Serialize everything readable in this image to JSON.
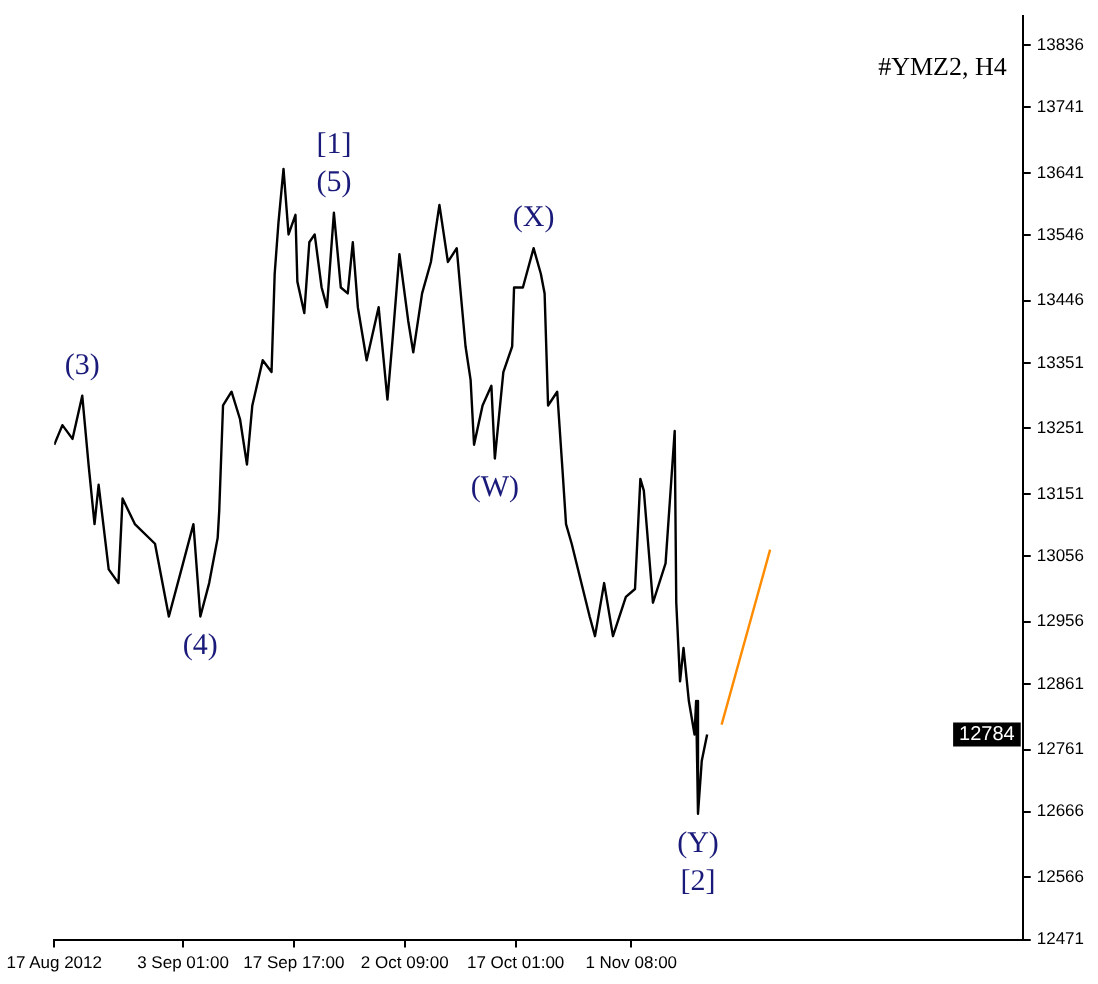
{
  "chart_data": {
    "type": "line",
    "title": "#YMZ2, H4",
    "xlim": [
      "2012-08-17T00:00",
      "2012-12-23T03:00"
    ],
    "xticks": [
      {
        "value": "2012-08-17T00:00",
        "label": "17 Aug 2012"
      },
      {
        "value": "2012-09-03T01:00",
        "label": "3 Sep 01:00"
      },
      {
        "value": "2012-09-17T17:00",
        "label": "17 Sep 17:00"
      },
      {
        "value": "2012-10-02T09:00",
        "label": "2 Oct 09:00"
      },
      {
        "value": "2012-10-17T01:00",
        "label": "17 Oct 01:00"
      },
      {
        "value": "2012-11-01T08:00",
        "label": "1 Nov 08:00"
      }
    ],
    "ylim": [
      12471,
      13880
    ],
    "yticks": [
      12471,
      12566,
      12666,
      12761,
      12861,
      12956,
      13056,
      13151,
      13251,
      13351,
      13446,
      13546,
      13641,
      13741,
      13836
    ],
    "grid": false,
    "legend": false,
    "marker": "none",
    "line_style": "solid",
    "series": [
      {
        "type": "line",
        "color": "#000000",
        "x": [
          "2012-08-17T00:00",
          "2012-08-18T02:00",
          "2012-08-19T10:00",
          "2012-08-20T17:00",
          "2012-08-21T13:00",
          "2012-08-22T08:00",
          "2012-08-22T21:00",
          "2012-08-24T05:00",
          "2012-08-25T12:00",
          "2012-08-26T01:00",
          "2012-08-27T16:00",
          "2012-08-30T08:00",
          "2012-09-01T04:00",
          "2012-09-03T01:00",
          "2012-09-04T10:00",
          "2012-09-05T08:00",
          "2012-09-06T12:00",
          "2012-09-07T15:00",
          "2012-09-07T20:00",
          "2012-09-08T08:00",
          "2012-09-09T11:00",
          "2012-09-10T14:00",
          "2012-09-11T12:00",
          "2012-09-12T05:00",
          "2012-09-13T14:00",
          "2012-09-14T18:00",
          "2012-09-15T04:00",
          "2012-09-15T16:00",
          "2012-09-16T08:00",
          "2012-09-17T00:00",
          "2012-09-17T22:00",
          "2012-09-18T04:00",
          "2012-09-19T02:00",
          "2012-09-19T18:00",
          "2012-09-20T11:00",
          "2012-09-21T09:00",
          "2012-09-22T02:00",
          "2012-09-23T00:00",
          "2012-09-23T22:00",
          "2012-09-24T20:00",
          "2012-09-25T12:00",
          "2012-09-26T04:00",
          "2012-09-27T08:00",
          "2012-09-28T22:00",
          "2012-09-30T02:00",
          "2012-09-30T18:00",
          "2012-10-01T16:00",
          "2012-10-02T20:00",
          "2012-10-03T12:00",
          "2012-10-04T16:00",
          "2012-10-05T20:00",
          "2012-10-06T23:00",
          "2012-10-08T02:00",
          "2012-10-09T06:00",
          "2012-10-09T17:00",
          "2012-10-10T10:00",
          "2012-10-11T02:00",
          "2012-10-11T13:00",
          "2012-10-12T16:00",
          "2012-10-13T20:00",
          "2012-10-14T07:00",
          "2012-10-15T10:00",
          "2012-10-16T14:00",
          "2012-10-16T20:00",
          "2012-10-18T00:00",
          "2012-10-19T10:00",
          "2012-10-20T09:00",
          "2012-10-20T21:00",
          "2012-10-21T08:00",
          "2012-10-22T13:00",
          "2012-10-23T06:00",
          "2012-10-23T17:00",
          "2012-10-24T11:00",
          "2012-10-26T20:00",
          "2012-10-27T13:00",
          "2012-10-28T18:00",
          "2012-10-29T22:00",
          "2012-10-31T15:00",
          "2012-11-01T20:00",
          "2012-11-02T13:00",
          "2012-11-03T00:00",
          "2012-11-04T05:00",
          "2012-11-05T21:00",
          "2012-11-07T02:00",
          "2012-11-07T07:00",
          "2012-11-07T19:00",
          "2012-11-08T06:00",
          "2012-11-08T23:00",
          "2012-11-09T17:00",
          "2012-11-09T22:00",
          "2012-11-10T04:00",
          "2012-11-10T16:00",
          "2012-11-11T09:00"
        ],
        "values": [
          13226,
          13256,
          13235,
          13301,
          13196,
          13105,
          13165,
          13036,
          13015,
          13144,
          13105,
          13075,
          12964,
          13045,
          13105,
          12964,
          13015,
          13084,
          13126,
          13286,
          13307,
          13265,
          13196,
          13286,
          13355,
          13337,
          13487,
          13565,
          13647,
          13547,
          13577,
          13475,
          13427,
          13535,
          13547,
          13466,
          13436,
          13580,
          13466,
          13457,
          13535,
          13436,
          13355,
          13436,
          13295,
          13385,
          13517,
          13415,
          13367,
          13457,
          13505,
          13592,
          13505,
          13526,
          13466,
          13376,
          13325,
          13226,
          13286,
          13316,
          13205,
          13337,
          13376,
          13466,
          13466,
          13526,
          13487,
          13457,
          13286,
          13307,
          13186,
          13105,
          13075,
          12964,
          12934,
          13015,
          12934,
          12994,
          13006,
          13174,
          13156,
          12985,
          13045,
          13247,
          12985,
          12865,
          12916,
          12835,
          12784,
          12835,
          12663,
          12744,
          12784
        ]
      },
      {
        "type": "line",
        "color": "#ff8c00",
        "x": [
          "2012-11-13T07:00",
          "2012-11-19T17:00"
        ],
        "values": [
          12799,
          13066
        ]
      }
    ],
    "annotations": [
      {
        "text": "(3)",
        "x": "2012-08-20T17:00",
        "y": 13301
      },
      {
        "text": "(4)",
        "x": "2012-09-05T08:00",
        "y": 12964
      },
      {
        "text": "[1]",
        "x": "2012-09-23T00:00",
        "y": 13580
      },
      {
        "text": "(5)",
        "x": "2012-09-23T00:00",
        "y": 13580
      },
      {
        "text": "(X)",
        "x": "2012-10-19T10:00",
        "y": 13526
      },
      {
        "text": "(W)",
        "x": "2012-10-14T07:00",
        "y": 13205
      },
      {
        "text": "(Y)",
        "x": "2012-11-10T04:00",
        "y": 12663
      },
      {
        "text": "[2]",
        "x": "2012-11-10T04:00",
        "y": 12663
      },
      {
        "text": "12784",
        "y": 12784
      }
    ]
  }
}
